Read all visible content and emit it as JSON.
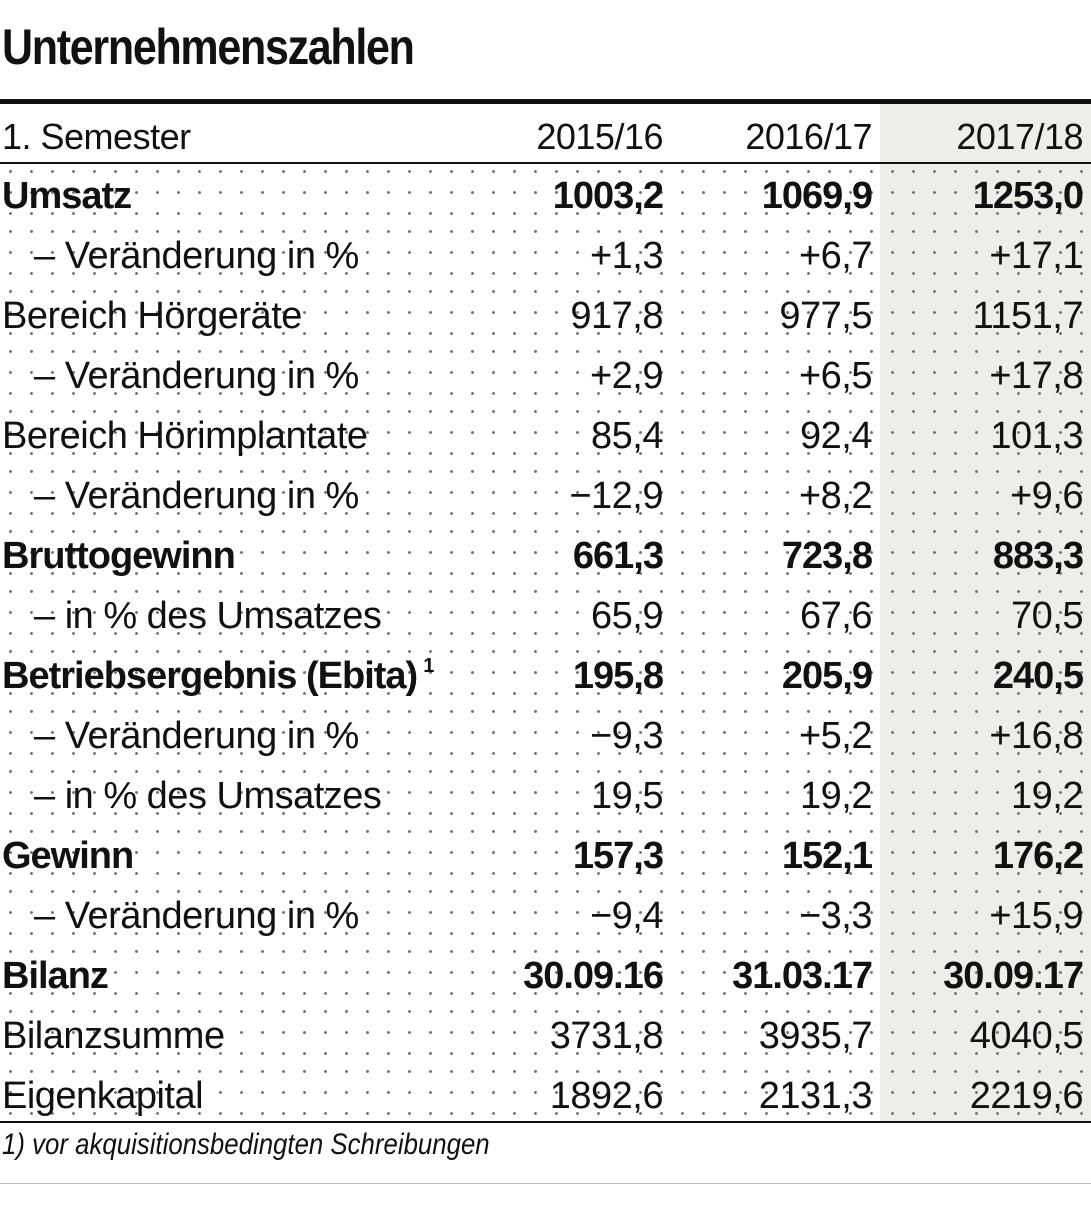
{
  "title": "Unternehmenszahlen",
  "header": {
    "label": "1. Semester",
    "col1": "2015/16",
    "col2": "2016/17",
    "col3": "2017/18"
  },
  "rows": [
    {
      "label": "Umsatz",
      "v1": "1003,2",
      "v2": "1069,9",
      "v3": "1253,0"
    },
    {
      "label": "–  Veränderung in %",
      "v1": "+1,3",
      "v2": "+6,7",
      "v3": "+17,1"
    },
    {
      "label": "Bereich Hörgeräte",
      "v1": "917,8",
      "v2": "977,5",
      "v3": "1151,7"
    },
    {
      "label": "–  Veränderung in %",
      "v1": "+2,9",
      "v2": "+6,5",
      "v3": "+17,8"
    },
    {
      "label": "Bereich Hörimplantate",
      "v1": "85,4",
      "v2": "92,4",
      "v3": "101,3"
    },
    {
      "label": "–  Veränderung in %",
      "v1": "−12,9",
      "v2": "+8,2",
      "v3": "+9,6"
    },
    {
      "label": "Bruttogewinn",
      "v1": "661,3",
      "v2": "723,8",
      "v3": "883,3"
    },
    {
      "label": "– in % des Umsatzes",
      "v1": "65,9",
      "v2": "67,6",
      "v3": "70,5"
    },
    {
      "label": "Betriebsergebnis (Ebita)",
      "sup": "1",
      "v1": "195,8",
      "v2": "205,9",
      "v3": "240,5"
    },
    {
      "label": "–  Veränderung in %",
      "v1": "−9,3",
      "v2": "+5,2",
      "v3": "+16,8"
    },
    {
      "label": "– in % des Umsatzes",
      "v1": "19,5",
      "v2": "19,2",
      "v3": "19,2"
    },
    {
      "label": "Gewinn",
      "v1": "157,3",
      "v2": "152,1",
      "v3": "176,2"
    },
    {
      "label": "–  Veränderung in %",
      "v1": "−9,4",
      "v2": "−3,3",
      "v3": "+15,9"
    },
    {
      "label": "Bilanz",
      "v1": "30.09.16",
      "v2": "31.03.17",
      "v3": "30.09.17"
    },
    {
      "label": "Bilanzsumme",
      "v1": "3731,8",
      "v2": "3935,7",
      "v3": "4040,5"
    },
    {
      "label": "Eigenkapital",
      "v1": "1892,6",
      "v2": "2131,3",
      "v3": "2219,6"
    }
  ],
  "footnote": "1) vor akquisitionsbedingten Schreibungen",
  "colors": {
    "text": "#111111",
    "highlight_column": "#efede8",
    "dots": "#777777"
  }
}
